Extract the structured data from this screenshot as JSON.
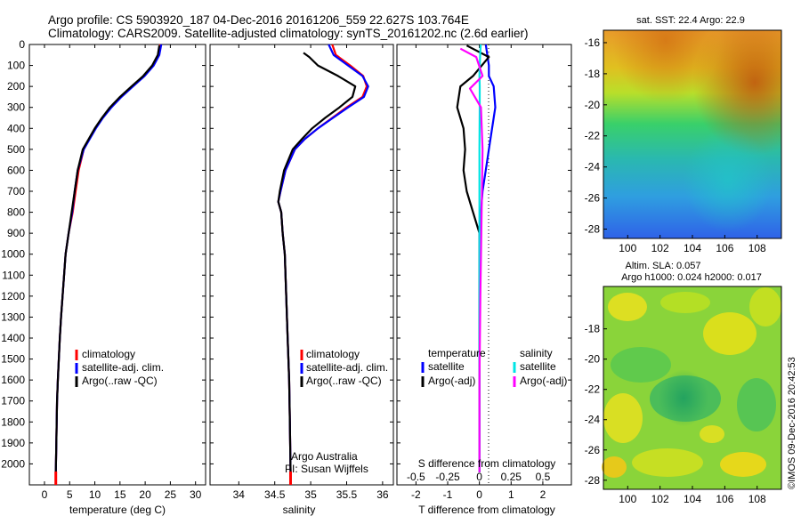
{
  "header": {
    "line1": "Argo profile: CS 5903920_187 04-Dec-2016 20161206_559 22.627S 103.764E",
    "line2": "Climatology: CARS2009. Satellite-adjusted climatology: synTS_20161202.nc (2.6d earlier)"
  },
  "colors": {
    "climatology": "#ff0000",
    "satellite": "#0000ff",
    "argo": "#000000",
    "salinity_satellite": "#00e5e5",
    "salinity_argo": "#ff00ff"
  },
  "chart_data": [
    {
      "type": "line",
      "xlabel": "temperature (deg C)",
      "ylabel": "",
      "xlim": [
        -3,
        32
      ],
      "ylim": [
        2100,
        0
      ],
      "xticks": [
        0,
        5,
        10,
        15,
        20,
        25,
        30
      ],
      "yticks": [
        0,
        100,
        200,
        300,
        400,
        500,
        600,
        700,
        800,
        900,
        1000,
        1100,
        1200,
        1300,
        1400,
        1500,
        1600,
        1700,
        1800,
        1900,
        2000
      ],
      "legend": [
        "climatology",
        "satellite-adj. clim.",
        "Argo(..raw -QC)"
      ],
      "legend_placement": "left",
      "series": [
        {
          "name": "climatology",
          "color": "#ff0000",
          "x": [
            23,
            22.6,
            21.5,
            19.8,
            17.5,
            15.2,
            13.2,
            11.5,
            10.1,
            8.9,
            7.8,
            6.8,
            6.2,
            5.6,
            4.8,
            4.2,
            3.9,
            3.6,
            3.3,
            3.05,
            2.85,
            2.65,
            2.5,
            2.35,
            2.25
          ],
          "y": [
            0,
            50,
            100,
            150,
            200,
            250,
            300,
            350,
            400,
            450,
            500,
            600,
            700,
            800,
            900,
            1000,
            1100,
            1200,
            1300,
            1400,
            1500,
            1600,
            1700,
            1900,
            2040
          ]
        },
        {
          "name": "satellite-adj. clim.",
          "color": "#0000ff",
          "x": [
            23.2,
            22.8,
            21.7,
            19.9,
            17.6,
            15.3,
            13.3,
            11.6,
            10.2,
            9.0,
            7.8,
            6.6,
            6.0,
            5.5,
            4.8,
            4.2,
            3.9,
            3.6,
            3.3,
            3.05,
            2.85,
            2.65,
            2.5,
            2.35,
            2.25
          ],
          "y": [
            0,
            50,
            100,
            150,
            200,
            250,
            300,
            350,
            400,
            450,
            500,
            600,
            700,
            800,
            900,
            1000,
            1100,
            1200,
            1300,
            1400,
            1500,
            1600,
            1700,
            1900,
            2040
          ]
        },
        {
          "name": "Argo(..raw -QC)",
          "color": "#000000",
          "x": [
            22.8,
            22.5,
            21.4,
            19.6,
            17.3,
            15.0,
            13.0,
            11.4,
            10.0,
            8.8,
            7.6,
            6.6,
            6.0,
            5.4,
            4.8,
            4.2,
            3.9,
            3.6,
            3.3,
            3.05,
            2.85,
            2.65,
            2.5,
            2.35,
            2.25
          ],
          "y": [
            5,
            50,
            100,
            150,
            200,
            250,
            300,
            350,
            400,
            450,
            500,
            600,
            700,
            800,
            900,
            1000,
            1100,
            1200,
            1300,
            1400,
            1500,
            1600,
            1700,
            1900,
            2040
          ]
        }
      ]
    },
    {
      "type": "line",
      "xlabel": "salinity",
      "ylabel": "",
      "xlim": [
        33.6,
        36.15
      ],
      "ylim": [
        2100,
        0
      ],
      "xticks": [
        34,
        34.5,
        35,
        35.5,
        36
      ],
      "xtick_labels": [
        "34",
        "34.5",
        "35",
        "35.5",
        "36"
      ],
      "legend": [
        "climatology",
        "satellite-adj. clim.",
        "Argo(..raw -QC)"
      ],
      "legend_placement": "bottom-right",
      "annotation": [
        "Argo Australia",
        "PI: Susan Wijffels"
      ],
      "series": [
        {
          "name": "climatology",
          "color": "#ff0000",
          "x": [
            35.3,
            35.35,
            35.55,
            35.73,
            35.78,
            35.72,
            35.5,
            35.3,
            35.1,
            34.92,
            34.78,
            34.65,
            34.58,
            34.55,
            34.59,
            34.61,
            34.64,
            34.66,
            34.68,
            34.7,
            34.71,
            34.72
          ],
          "y": [
            0,
            50,
            100,
            150,
            200,
            250,
            300,
            350,
            400,
            450,
            500,
            600,
            700,
            750,
            800,
            900,
            1000,
            1200,
            1400,
            1600,
            1800,
            2040
          ]
        },
        {
          "name": "satellite-adj. clim.",
          "color": "#0000ff",
          "x": [
            35.25,
            35.32,
            35.52,
            35.72,
            35.8,
            35.74,
            35.52,
            35.31,
            35.1,
            34.92,
            34.78,
            34.65,
            34.58,
            34.55,
            34.59,
            34.61,
            34.64,
            34.66,
            34.68,
            34.7,
            34.71,
            34.72
          ],
          "y": [
            0,
            50,
            100,
            150,
            200,
            250,
            300,
            350,
            400,
            450,
            500,
            600,
            700,
            750,
            800,
            900,
            1000,
            1200,
            1400,
            1600,
            1800,
            2040
          ]
        },
        {
          "name": "Argo(..raw -QC)",
          "color": "#000000",
          "x": [
            34.9,
            34.98,
            35.1,
            35.38,
            35.62,
            35.58,
            35.4,
            35.2,
            35.02,
            34.88,
            34.75,
            34.63,
            34.57,
            34.55,
            34.59,
            34.61,
            34.64,
            34.66,
            34.68,
            34.7,
            34.71,
            34.72
          ],
          "y": [
            40,
            60,
            100,
            150,
            200,
            250,
            300,
            350,
            400,
            450,
            500,
            600,
            700,
            750,
            800,
            900,
            1000,
            1200,
            1400,
            1600,
            1800,
            2040
          ]
        }
      ]
    },
    {
      "type": "line",
      "xlabel": "T difference from climatology",
      "top_xlabel": "S difference from climatology",
      "xlim": [
        -2.6,
        2.9
      ],
      "ylim": [
        2100,
        0
      ],
      "xticks": [
        -2,
        -1,
        0,
        1,
        2
      ],
      "top_xticks": [
        -0.5,
        -0.25,
        0,
        0.25,
        0.5
      ],
      "top_xtick_labels": [
        "-0.5",
        "-0.25",
        "0",
        "0.25",
        "0.5"
      ],
      "legend": {
        "temperature": [
          "satellite",
          "Argo(-adj)"
        ],
        "salinity": [
          "satellite",
          "Argo(-adj)"
        ]
      },
      "legend_titles": [
        "temperature",
        "salinity"
      ],
      "legend_placement": "center",
      "series": [
        {
          "name": "temperature satellite",
          "color": "#0000ff",
          "x": [
            0.2,
            0.3,
            0.3,
            0.45,
            0.5,
            0.4,
            0.3,
            0.2,
            0.1,
            0.05,
            0.0,
            0.0,
            0.0
          ],
          "y": [
            0,
            100,
            150,
            200,
            300,
            400,
            500,
            600,
            700,
            800,
            900,
            1200,
            2040
          ]
        },
        {
          "name": "temperature Argo(-adj)",
          "color": "#000000",
          "x": [
            -0.4,
            0.3,
            -0.2,
            -0.6,
            -0.7,
            -0.5,
            -0.45,
            -0.5,
            -0.4,
            -0.2,
            0.0,
            0.0,
            0.0
          ],
          "y": [
            5,
            60,
            150,
            200,
            300,
            400,
            500,
            600,
            700,
            800,
            900,
            1200,
            2040
          ]
        },
        {
          "name": "salinity satellite",
          "color": "#00e5e5",
          "x": [
            0.04,
            0.02,
            0.0,
            0.01,
            0.01,
            0.0,
            0.0,
            0.0,
            0.0,
            0.0,
            0.0
          ],
          "y": [
            0,
            60,
            150,
            200,
            300,
            500,
            700,
            900,
            1200,
            1600,
            2040
          ]
        },
        {
          "name": "salinity Argo(-adj)",
          "color": "#ff00ff",
          "x": [
            -0.6,
            -0.1,
            0.1,
            -0.3,
            0.05,
            0.1,
            0.08,
            0.06,
            0.03,
            0.0,
            0.0
          ],
          "y": [
            20,
            60,
            150,
            210,
            300,
            500,
            700,
            900,
            1200,
            1600,
            2040
          ]
        }
      ]
    },
    {
      "type": "heatmap",
      "title": "sat. SST: 22.4 Argo: 22.9",
      "xlim": [
        98.5,
        109.5
      ],
      "ylim": [
        -28.6,
        -15.2
      ],
      "xticks": [
        100,
        102,
        104,
        106,
        108
      ],
      "yticks": [
        -16,
        -18,
        -20,
        -22,
        -24,
        -26,
        -28
      ],
      "colormap": "jet"
    },
    {
      "type": "heatmap",
      "title": [
        "Altim. SLA: 0.057",
        "Argo h1000: 0.024 h2000: 0.017"
      ],
      "xlim": [
        98.5,
        109.5
      ],
      "ylim": [
        -28.6,
        -15.2
      ],
      "xticks": [
        100,
        102,
        104,
        106,
        108
      ],
      "yticks": [
        -18,
        -20,
        -22,
        -24,
        -26,
        -28
      ],
      "colormap": "jet"
    }
  ],
  "footer": {
    "credit": "©IMOS 09-Dec-2016 20:42:53"
  }
}
